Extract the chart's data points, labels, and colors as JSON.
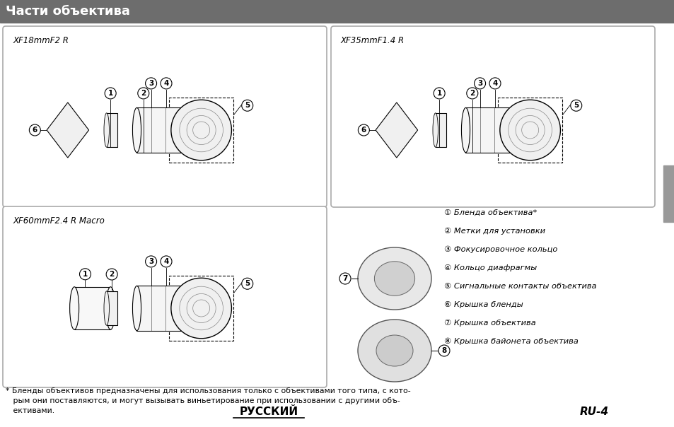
{
  "bg_color": "#ffffff",
  "header_color": "#6d6d6d",
  "header_text": "Части объектива",
  "header_text_color": "#ffffff",
  "header_font_size": 13,
  "box_border_color": "#aaaaaa",
  "lens1_label": "XF18mmF2 R",
  "lens2_label": "XF35mmF1.4 R",
  "lens3_label": "XF60mmF2.4 R Macro",
  "legend_items": [
    "① Бленда объектива*",
    "② Метки для установки",
    "③ Фокусировочное кольцо",
    "④ Кольцо диафрагмы",
    "⑤ Сигнальные контакты объектива",
    "⑥ Крышка бленды",
    "⑦ Крышка объектива",
    "⑧ Крышка байонета объектива"
  ],
  "footer_left": "РУССКИЙ",
  "footer_right": "RU-4",
  "footnote_line1": "* Бленды объективов предназначены для использования только с объективами того типа, с кото-",
  "footnote_line2": "   рым они поставляются, и могут вызывать виньетирование при использовании с другими объ-",
  "footnote_line3": "   ективами.",
  "right_bar_color": "#999999"
}
